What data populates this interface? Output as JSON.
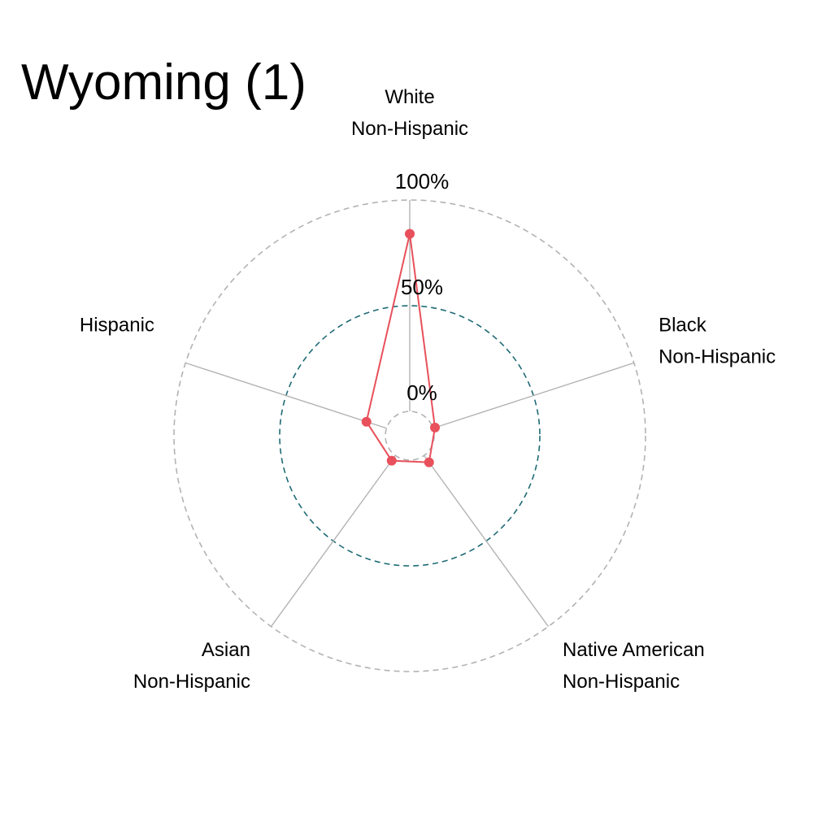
{
  "chart_data": {
    "type": "radar",
    "title": "Wyoming (1)",
    "axes": [
      {
        "lines": [
          "White",
          "Non-Hispanic"
        ]
      },
      {
        "lines": [
          "Black",
          "Non-Hispanic"
        ]
      },
      {
        "lines": [
          "Native American",
          "Non-Hispanic"
        ]
      },
      {
        "lines": [
          "Asian",
          "Non-Hispanic"
        ]
      },
      {
        "lines": [
          "Hispanic"
        ]
      }
    ],
    "grid_labels": [
      "0%",
      "50%",
      "100%"
    ],
    "range": [
      0,
      100
    ],
    "series": [
      {
        "values": [
          84,
          1,
          4,
          3,
          10
        ]
      }
    ],
    "colors": {
      "series": "#e8505b",
      "grid_mid": "#1f6b75",
      "grid_outer": "#b3b3b3",
      "axis": "#b3b3b3"
    }
  }
}
